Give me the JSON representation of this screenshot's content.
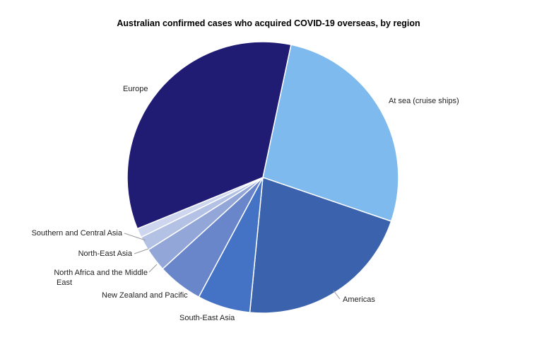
{
  "chart_data": {
    "type": "pie",
    "title": "Australian confirmed cases who acquired COVID-19 overseas, by region",
    "slices": [
      {
        "label": "At sea (cruise ships)",
        "value": 26.9,
        "color": "#7EBAED"
      },
      {
        "label": "Americas",
        "value": 21.3,
        "color": "#3B63AD"
      },
      {
        "label": "South-East Asia",
        "value": 6.3,
        "color": "#4472C4"
      },
      {
        "label": "New Zealand and Pacific",
        "value": 5.4,
        "color": "#6A86CB"
      },
      {
        "label": "North Africa and the Middle East",
        "label_lines": [
          "North Africa and the Middle",
          "East"
        ],
        "value": 2.8,
        "color": "#92A6D8"
      },
      {
        "label": "North-East Asia",
        "value": 1.7,
        "color": "#B3C1E5"
      },
      {
        "label": "Southern and Central Asia",
        "value": 1.1,
        "color": "#CDD6EE"
      },
      {
        "label": "Europe",
        "value": 34.5,
        "color": "#211C73"
      }
    ]
  }
}
